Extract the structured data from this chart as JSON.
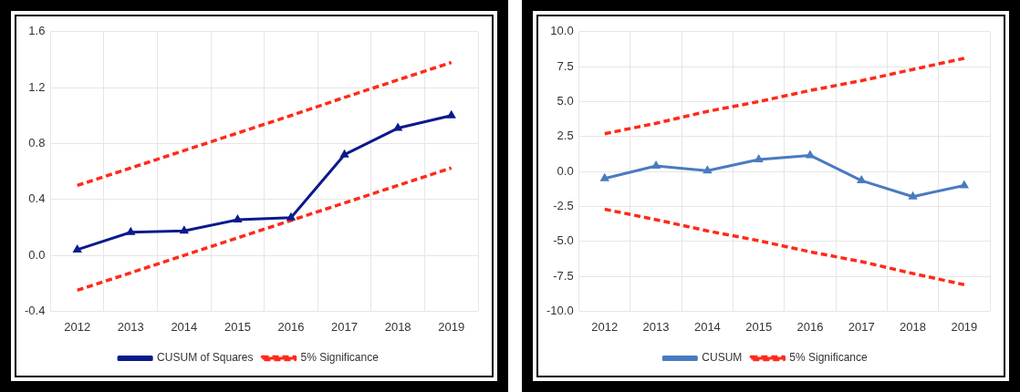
{
  "chart_data": [
    {
      "type": "line",
      "categories": [
        "2012",
        "2013",
        "2014",
        "2015",
        "2016",
        "2017",
        "2018",
        "2019"
      ],
      "ylim": [
        -0.4,
        1.6
      ],
      "yticks": [
        {
          "value": -0.4,
          "label": "-0.4"
        },
        {
          "value": 0,
          "label": "0.0"
        },
        {
          "value": 0.4,
          "label": "0.4"
        },
        {
          "value": 0.8,
          "label": "0.8"
        },
        {
          "value": 1.2,
          "label": "1.2"
        },
        {
          "value": 1.6,
          "label": "1.6"
        }
      ],
      "grid": true,
      "legend": "bottom",
      "series": [
        {
          "name": "CUSUM of Squares",
          "color": "#0a1a8c",
          "marker": "triangle",
          "line_style": "solid",
          "values": [
            0.04,
            0.165,
            0.175,
            0.255,
            0.27,
            0.72,
            0.91,
            1.0
          ]
        },
        {
          "name": "5% Significance",
          "color": "#ff2a1a",
          "marker": "none",
          "line_style": "dashed",
          "values": [
            0.5,
            0.625,
            0.75,
            0.875,
            1.0,
            1.13,
            1.255,
            1.38
          ]
        },
        {
          "color": "#ff2a1a",
          "marker": "none",
          "line_style": "dashed",
          "values": [
            -0.25,
            -0.125,
            0.0,
            0.125,
            0.25,
            0.375,
            0.5,
            0.625
          ]
        }
      ]
    },
    {
      "type": "line",
      "categories": [
        "2012",
        "2013",
        "2014",
        "2015",
        "2016",
        "2017",
        "2018",
        "2019"
      ],
      "ylim": [
        -10,
        10
      ],
      "yticks": [
        {
          "value": -10,
          "label": "-10.0"
        },
        {
          "value": -7.5,
          "label": "-7.5"
        },
        {
          "value": -5,
          "label": "-5.0"
        },
        {
          "value": -2.5,
          "label": "-2.5"
        },
        {
          "value": 0,
          "label": "0.0"
        },
        {
          "value": 2.5,
          "label": "2.5"
        },
        {
          "value": 5,
          "label": "5.0"
        },
        {
          "value": 7.5,
          "label": "7.5"
        },
        {
          "value": 10,
          "label": "10.0"
        }
      ],
      "grid": true,
      "legend": "bottom",
      "series": [
        {
          "name": "CUSUM",
          "color": "#4a7bbf",
          "marker": "triangle",
          "line_style": "solid",
          "values": [
            -0.5,
            0.4,
            0.05,
            0.85,
            1.15,
            -0.65,
            -1.8,
            -1.0
          ]
        },
        {
          "name": "5% Significance",
          "color": "#ff2a1a",
          "marker": "none",
          "line_style": "dashed",
          "values": [
            2.7,
            3.45,
            4.3,
            5.0,
            5.8,
            6.5,
            7.3,
            8.1
          ]
        },
        {
          "color": "#ff2a1a",
          "marker": "none",
          "line_style": "dashed",
          "values": [
            -2.7,
            -3.45,
            -4.25,
            -4.95,
            -5.75,
            -6.45,
            -7.3,
            -8.1
          ]
        }
      ]
    }
  ]
}
